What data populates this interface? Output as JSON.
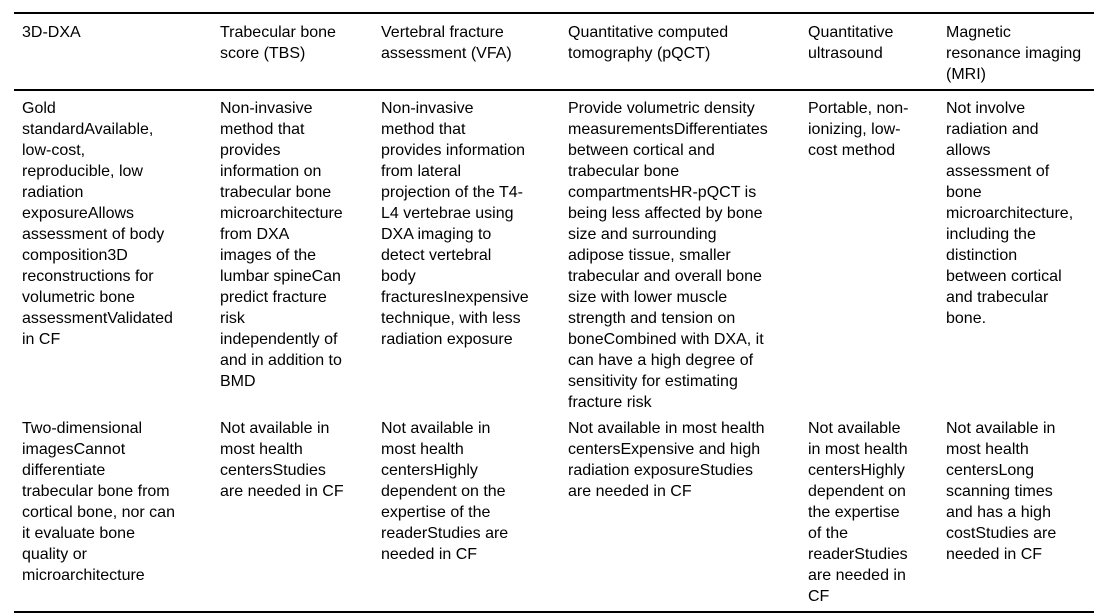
{
  "table": {
    "headers": [
      "3D-DXA",
      "Trabecular bone score (TBS)",
      "Vertebral fracture assessment (VFA)",
      "Quantitative computed tomography (pQCT)",
      "Quantitative ultrasound",
      "Magnetic resonance imaging (MRI)"
    ],
    "rows": [
      {
        "cells": [
          "Gold standardAvailable, low-cost, reproducible, low radiation exposureAllows assessment of body composition3D reconstructions for volumetric bone assessmentValidated in CF",
          "Non-invasive method that provides information on trabecular bone microarchitecture from DXA images of the lumbar spineCan predict fracture risk independently of and in addition to BMD",
          "Non-invasive method that provides information from lateral projection of the T4-L4 vertebrae using DXA imaging to detect vertebral body fracturesInexpensive technique, with less radiation exposure",
          "Provide volumetric density measurementsDifferentiates between cortical and trabecular bone compartmentsHR-pQCT is being less affected by bone size and surrounding adipose tissue, smaller trabecular and overall bone size with lower muscle strength and tension on boneCombined with DXA, it can have a high degree of sensitivity for estimating fracture risk",
          "Portable, non-ionizing, low-cost method",
          "Not involve radiation and allows assessment of bone microarchitecture, including the distinction between cortical and trabecular bone."
        ]
      },
      {
        "cells": [
          "Two-dimensional imagesCannot differentiate trabecular bone from cortical bone, nor can it evaluate bone quality or microarchitecture",
          "Not available in most health centersStudies are needed in CF",
          "Not available in most health centersHighly dependent on the expertise of the readerStudies are needed in CF",
          "Not available in most health centersExpensive and high radiation exposureStudies are needed in CF",
          "Not available in most health centersHighly dependent on the expertise of the readerStudies are needed in CF",
          "Not available in most health centersLong scanning times and has a high costStudies are needed in CF"
        ]
      }
    ]
  }
}
